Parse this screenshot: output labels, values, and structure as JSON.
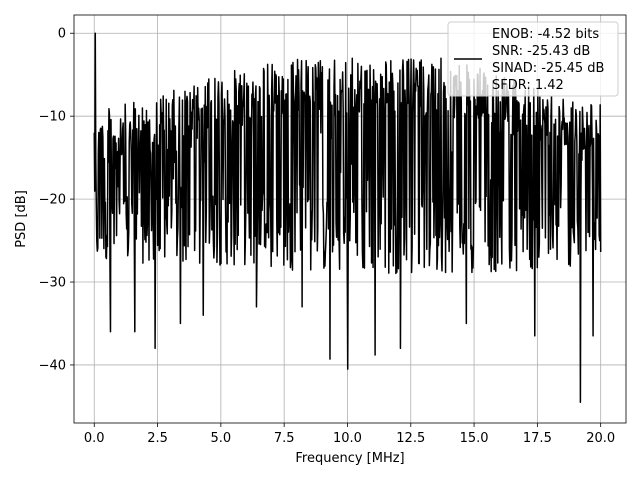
{
  "chart_data": {
    "type": "line",
    "title": "",
    "xlabel": "Frequency [MHz]",
    "ylabel": "PSD [dB]",
    "xlim": [
      -0.8,
      21.0
    ],
    "ylim": [
      -47.0,
      2.2
    ],
    "grid": true,
    "legend_position": "top-right",
    "x_ticks": [
      0.0,
      2.5,
      5.0,
      7.5,
      10.0,
      12.5,
      15.0,
      17.5,
      20.0
    ],
    "x_tick_labels": [
      "0.0",
      "2.5",
      "5.0",
      "7.5",
      "10.0",
      "12.5",
      "15.0",
      "17.5",
      "20.0"
    ],
    "y_ticks": [
      0,
      -10,
      -20,
      -30,
      -40
    ],
    "y_tick_labels": [
      "0",
      "−10",
      "−20",
      "−30",
      "−40"
    ],
    "legend": [
      "ENOB: -4.52 bits",
      "SNR: -25.43 dB",
      "SINAD: -25.45 dB",
      "SFDR: 1.42"
    ],
    "series": [
      {
        "color": "#000000",
        "x_range": [
          0.0,
          20.0
        ],
        "n_points": 1000,
        "peak": {
          "x": 0.05,
          "y": 0.0
        },
        "deep_dips": [
          {
            "x": 0.65,
            "y": -36.0
          },
          {
            "x": 1.6,
            "y": -36.0
          },
          {
            "x": 2.4,
            "y": -38.0
          },
          {
            "x": 3.4,
            "y": -35.0
          },
          {
            "x": 4.3,
            "y": -34.0
          },
          {
            "x": 6.4,
            "y": -33.0
          },
          {
            "x": 8.2,
            "y": -33.0
          },
          {
            "x": 9.3,
            "y": -39.3
          },
          {
            "x": 10.0,
            "y": -40.5
          },
          {
            "x": 11.1,
            "y": -38.8
          },
          {
            "x": 12.1,
            "y": -38.0
          },
          {
            "x": 14.7,
            "y": -35.0
          },
          {
            "x": 17.4,
            "y": -36.5
          },
          {
            "x": 19.2,
            "y": -44.5
          },
          {
            "x": 19.7,
            "y": -36.5
          }
        ],
        "upper_envelope": [
          {
            "x": 0.5,
            "y": -9.0
          },
          {
            "x": 2.0,
            "y": -8.0
          },
          {
            "x": 4.0,
            "y": -6.0
          },
          {
            "x": 6.0,
            "y": -4.0
          },
          {
            "x": 8.0,
            "y": -3.0
          },
          {
            "x": 10.0,
            "y": -3.0
          },
          {
            "x": 12.0,
            "y": -3.0
          },
          {
            "x": 14.0,
            "y": -3.0
          },
          {
            "x": 16.0,
            "y": -5.0
          },
          {
            "x": 18.0,
            "y": -7.0
          },
          {
            "x": 20.0,
            "y": -8.0
          }
        ],
        "lower_envelope": [
          {
            "x": 0.5,
            "y": -28.0
          },
          {
            "x": 5.0,
            "y": -28.0
          },
          {
            "x": 10.0,
            "y": -29.0
          },
          {
            "x": 15.0,
            "y": -29.0
          },
          {
            "x": 20.0,
            "y": -28.0
          }
        ]
      }
    ]
  }
}
